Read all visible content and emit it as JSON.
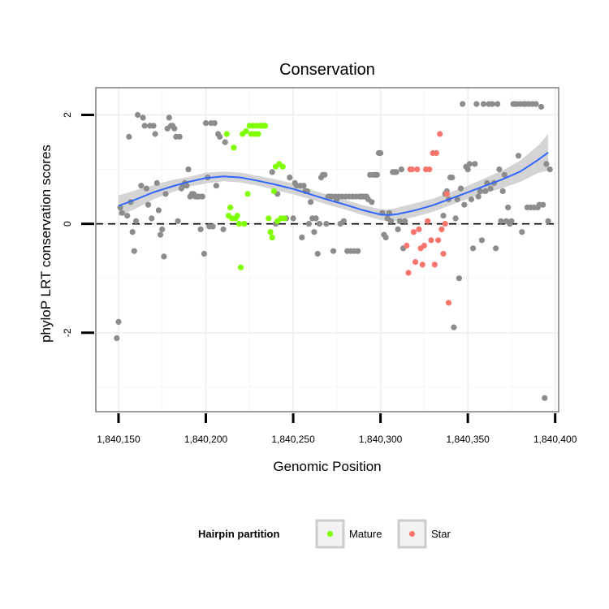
{
  "chart_data": {
    "type": "scatter",
    "title": "Conservation",
    "xlabel": "Genomic Position",
    "ylabel": "phyloP LRT conservation scores",
    "xlim": [
      1840137,
      1840402
    ],
    "ylim": [
      -3.45,
      2.5
    ],
    "x_ticks": [
      1840150,
      1840200,
      1840250,
      1840300,
      1840350,
      1840400
    ],
    "x_tick_labels": [
      "1,840,150",
      "1,840,200",
      "1,840,250",
      "1,840,300",
      "1,840,350",
      "1,840,400"
    ],
    "y_ticks": [
      -2,
      0,
      2
    ],
    "y_tick_labels": [
      "-2",
      "0",
      "2"
    ],
    "reference_line": {
      "y": 0,
      "style": "dashed"
    },
    "legend": {
      "title": "Hairpin partition",
      "position": "bottom",
      "entries": [
        {
          "label": "Mature",
          "color": "#7fff00"
        },
        {
          "label": "Star",
          "color": "#f8766d"
        }
      ]
    },
    "colors": {
      "other": "#8c8c8c",
      "Mature": "#7fff00",
      "Star": "#f8766d",
      "smooth": "#3366ff",
      "ribbon": "#cccccc"
    },
    "series": [
      {
        "name": "Other",
        "points": [
          [
            1840149,
            -2.1
          ],
          [
            1840150,
            -1.8
          ],
          [
            1840151,
            0.3
          ],
          [
            1840152,
            0.2
          ],
          [
            1840155,
            0.15
          ],
          [
            1840156,
            1.6
          ],
          [
            1840157,
            0.4
          ],
          [
            1840158,
            -0.15
          ],
          [
            1840159,
            -0.5
          ],
          [
            1840160,
            0.05
          ],
          [
            1840161,
            2.0
          ],
          [
            1840163,
            0.7
          ],
          [
            1840164,
            1.95
          ],
          [
            1840165,
            1.8
          ],
          [
            1840166,
            0.65
          ],
          [
            1840167,
            0.35
          ],
          [
            1840168,
            1.8
          ],
          [
            1840169,
            0.1
          ],
          [
            1840170,
            1.8
          ],
          [
            1840171,
            1.65
          ],
          [
            1840172,
            0.75
          ],
          [
            1840173,
            0.25
          ],
          [
            1840174,
            -0.2
          ],
          [
            1840175,
            -0.1
          ],
          [
            1840176,
            -0.6
          ],
          [
            1840177,
            0.55
          ],
          [
            1840178,
            1.75
          ],
          [
            1840179,
            1.95
          ],
          [
            1840180,
            1.8
          ],
          [
            1840181,
            1.8
          ],
          [
            1840182,
            1.75
          ],
          [
            1840183,
            1.6
          ],
          [
            1840184,
            0.05
          ],
          [
            1840185,
            1.6
          ],
          [
            1840186,
            0.65
          ],
          [
            1840187,
            0.7
          ],
          [
            1840188,
            0.75
          ],
          [
            1840189,
            0.7
          ],
          [
            1840190,
            1.0
          ],
          [
            1840191,
            0.5
          ],
          [
            1840192,
            0.55
          ],
          [
            1840193,
            0.55
          ],
          [
            1840194,
            0.5
          ],
          [
            1840195,
            0.5
          ],
          [
            1840196,
            0.5
          ],
          [
            1840197,
            -0.1
          ],
          [
            1840198,
            0.5
          ],
          [
            1840199,
            -0.55
          ],
          [
            1840200,
            1.85
          ],
          [
            1840201,
            0.85
          ],
          [
            1840202,
            -0.05
          ],
          [
            1840203,
            1.85
          ],
          [
            1840204,
            -0.05
          ],
          [
            1840205,
            1.85
          ],
          [
            1840206,
            0.7
          ],
          [
            1840207,
            1.65
          ],
          [
            1840208,
            1.6
          ],
          [
            1840210,
            -0.1
          ],
          [
            1840211,
            1.5
          ],
          [
            1840238,
            0.95
          ],
          [
            1840240,
            0.0
          ],
          [
            1840241,
            0.55
          ],
          [
            1840246,
            0.1
          ],
          [
            1840248,
            0.85
          ],
          [
            1840250,
            0.1
          ],
          [
            1840251,
            0.75
          ],
          [
            1840252,
            0.7
          ],
          [
            1840254,
            0.7
          ],
          [
            1840255,
            -0.25
          ],
          [
            1840256,
            0.7
          ],
          [
            1840257,
            0.6
          ],
          [
            1840258,
            0.6
          ],
          [
            1840259,
            0.0
          ],
          [
            1840260,
            0.4
          ],
          [
            1840261,
            0.1
          ],
          [
            1840262,
            -0.15
          ],
          [
            1840263,
            0.1
          ],
          [
            1840264,
            -0.55
          ],
          [
            1840265,
            0.0
          ],
          [
            1840266,
            0.85
          ],
          [
            1840267,
            0.9
          ],
          [
            1840268,
            0.9
          ],
          [
            1840269,
            0.0
          ],
          [
            1840270,
            0.5
          ],
          [
            1840271,
            0.5
          ],
          [
            1840272,
            0.5
          ],
          [
            1840273,
            -0.5
          ],
          [
            1840274,
            0.5
          ],
          [
            1840275,
            0.45
          ],
          [
            1840276,
            0.5
          ],
          [
            1840277,
            0.0
          ],
          [
            1840278,
            0.5
          ],
          [
            1840279,
            0.05
          ],
          [
            1840280,
            0.5
          ],
          [
            1840281,
            -0.5
          ],
          [
            1840282,
            0.5
          ],
          [
            1840283,
            -0.5
          ],
          [
            1840284,
            0.5
          ],
          [
            1840285,
            -0.5
          ],
          [
            1840286,
            0.5
          ],
          [
            1840287,
            -0.5
          ],
          [
            1840288,
            0.5
          ],
          [
            1840289,
            0.5
          ],
          [
            1840290,
            0.5
          ],
          [
            1840291,
            0.5
          ],
          [
            1840292,
            0.5
          ],
          [
            1840293,
            0.45
          ],
          [
            1840294,
            0.9
          ],
          [
            1840295,
            0.4
          ],
          [
            1840296,
            0.9
          ],
          [
            1840297,
            0.9
          ],
          [
            1840298,
            0.9
          ],
          [
            1840299,
            1.3
          ],
          [
            1840300,
            1.3
          ],
          [
            1840301,
            0.2
          ],
          [
            1840302,
            -0.2
          ],
          [
            1840303,
            -0.25
          ],
          [
            1840304,
            0.1
          ],
          [
            1840305,
            0.2
          ],
          [
            1840306,
            0.05
          ],
          [
            1840307,
            0.95
          ],
          [
            1840308,
            0.95
          ],
          [
            1840309,
            0.95
          ],
          [
            1840310,
            -0.1
          ],
          [
            1840311,
            0.05
          ],
          [
            1840312,
            1.0
          ],
          [
            1840313,
            -0.45
          ],
          [
            1840314,
            0.05
          ],
          [
            1840336,
            0.15
          ],
          [
            1840337,
            0.55
          ],
          [
            1840338,
            0.6
          ],
          [
            1840339,
            0.45
          ],
          [
            1840340,
            0.85
          ],
          [
            1840341,
            0.85
          ],
          [
            1840342,
            -1.9
          ],
          [
            1840343,
            0.1
          ],
          [
            1840344,
            0.45
          ],
          [
            1840345,
            -1.0
          ],
          [
            1840346,
            0.65
          ],
          [
            1840347,
            2.2
          ],
          [
            1840348,
            0.35
          ],
          [
            1840349,
            1.05
          ],
          [
            1840350,
            1.0
          ],
          [
            1840351,
            1.1
          ],
          [
            1840352,
            0.45
          ],
          [
            1840353,
            -0.45
          ],
          [
            1840354,
            1.1
          ],
          [
            1840355,
            2.2
          ],
          [
            1840356,
            0.5
          ],
          [
            1840357,
            0.6
          ],
          [
            1840358,
            -0.3
          ],
          [
            1840359,
            2.2
          ],
          [
            1840360,
            0.6
          ],
          [
            1840361,
            0.75
          ],
          [
            1840362,
            2.2
          ],
          [
            1840363,
            0.65
          ],
          [
            1840364,
            2.2
          ],
          [
            1840365,
            0.75
          ],
          [
            1840366,
            -0.45
          ],
          [
            1840367,
            2.2
          ],
          [
            1840368,
            1.0
          ],
          [
            1840369,
            0.05
          ],
          [
            1840370,
            0.6
          ],
          [
            1840371,
            0.9
          ],
          [
            1840372,
            0.05
          ],
          [
            1840373,
            0.3
          ],
          [
            1840374,
            0.0
          ],
          [
            1840375,
            0.05
          ],
          [
            1840376,
            2.2
          ],
          [
            1840377,
            2.2
          ],
          [
            1840378,
            2.2
          ],
          [
            1840379,
            1.25
          ],
          [
            1840380,
            2.2
          ],
          [
            1840381,
            -0.15
          ],
          [
            1840382,
            2.2
          ],
          [
            1840383,
            2.2
          ],
          [
            1840384,
            0.3
          ],
          [
            1840385,
            2.2
          ],
          [
            1840386,
            0.3
          ],
          [
            1840387,
            2.2
          ],
          [
            1840388,
            0.3
          ],
          [
            1840389,
            2.2
          ],
          [
            1840390,
            0.3
          ],
          [
            1840391,
            0.35
          ],
          [
            1840392,
            2.15
          ],
          [
            1840393,
            0.35
          ],
          [
            1840394,
            -3.2
          ],
          [
            1840395,
            1.1
          ],
          [
            1840396,
            0.05
          ],
          [
            1840397,
            1.0
          ]
        ]
      },
      {
        "name": "Mature",
        "points": [
          [
            1840212,
            1.65
          ],
          [
            1840213,
            0.15
          ],
          [
            1840214,
            0.3
          ],
          [
            1840215,
            0.1
          ],
          [
            1840216,
            1.4
          ],
          [
            1840217,
            0.1
          ],
          [
            1840218,
            0.15
          ],
          [
            1840219,
            0.0
          ],
          [
            1840220,
            -0.8
          ],
          [
            1840221,
            1.65
          ],
          [
            1840222,
            0.0
          ],
          [
            1840223,
            1.7
          ],
          [
            1840224,
            0.55
          ],
          [
            1840225,
            1.8
          ],
          [
            1840226,
            1.65
          ],
          [
            1840227,
            1.8
          ],
          [
            1840228,
            1.65
          ],
          [
            1840229,
            1.8
          ],
          [
            1840230,
            1.65
          ],
          [
            1840231,
            1.8
          ],
          [
            1840232,
            1.8
          ],
          [
            1840233,
            1.8
          ],
          [
            1840234,
            1.8
          ],
          [
            1840236,
            0.1
          ],
          [
            1840237,
            -0.15
          ],
          [
            1840238,
            -0.25
          ],
          [
            1840239,
            0.6
          ],
          [
            1840240,
            1.05
          ],
          [
            1840241,
            0.05
          ],
          [
            1840242,
            1.1
          ],
          [
            1840243,
            0.1
          ],
          [
            1840244,
            1.05
          ],
          [
            1840245,
            0.1
          ]
        ]
      },
      {
        "name": "Star",
        "points": [
          [
            1840315,
            -0.4
          ],
          [
            1840316,
            -0.9
          ],
          [
            1840317,
            1.0
          ],
          [
            1840318,
            1.0
          ],
          [
            1840319,
            -0.15
          ],
          [
            1840320,
            -0.7
          ],
          [
            1840321,
            1.0
          ],
          [
            1840322,
            -0.1
          ],
          [
            1840323,
            -0.45
          ],
          [
            1840324,
            -0.75
          ],
          [
            1840325,
            -0.4
          ],
          [
            1840326,
            1.0
          ],
          [
            1840327,
            0.05
          ],
          [
            1840328,
            1.0
          ],
          [
            1840329,
            -0.3
          ],
          [
            1840330,
            1.3
          ],
          [
            1840331,
            -0.75
          ],
          [
            1840332,
            1.3
          ],
          [
            1840333,
            -0.3
          ],
          [
            1840334,
            1.65
          ],
          [
            1840335,
            -0.1
          ],
          [
            1840336,
            -0.55
          ],
          [
            1840337,
            0.0
          ],
          [
            1840338,
            0.55
          ],
          [
            1840339,
            -1.45
          ]
        ]
      }
    ],
    "smooth": {
      "x": [
        1840150,
        1840160,
        1840170,
        1840180,
        1840190,
        1840200,
        1840210,
        1840220,
        1840230,
        1840240,
        1840250,
        1840260,
        1840270,
        1840280,
        1840290,
        1840300,
        1840305,
        1840310,
        1840320,
        1840330,
        1840340,
        1840350,
        1840360,
        1840370,
        1840380,
        1840390,
        1840396
      ],
      "y": [
        0.33,
        0.45,
        0.58,
        0.68,
        0.77,
        0.84,
        0.87,
        0.85,
        0.79,
        0.72,
        0.64,
        0.54,
        0.44,
        0.35,
        0.25,
        0.17,
        0.16,
        0.18,
        0.25,
        0.34,
        0.46,
        0.58,
        0.7,
        0.82,
        0.96,
        1.17,
        1.31
      ],
      "lower": [
        0.14,
        0.28,
        0.45,
        0.57,
        0.68,
        0.74,
        0.78,
        0.76,
        0.7,
        0.62,
        0.54,
        0.45,
        0.35,
        0.26,
        0.16,
        0.07,
        0.04,
        0.06,
        0.13,
        0.22,
        0.34,
        0.46,
        0.56,
        0.66,
        0.77,
        0.93,
        0.98
      ],
      "upper": [
        0.52,
        0.62,
        0.71,
        0.8,
        0.86,
        0.94,
        0.96,
        0.94,
        0.88,
        0.82,
        0.74,
        0.63,
        0.53,
        0.44,
        0.34,
        0.27,
        0.26,
        0.3,
        0.38,
        0.46,
        0.58,
        0.7,
        0.84,
        0.98,
        1.16,
        1.43,
        1.65
      ]
    }
  }
}
